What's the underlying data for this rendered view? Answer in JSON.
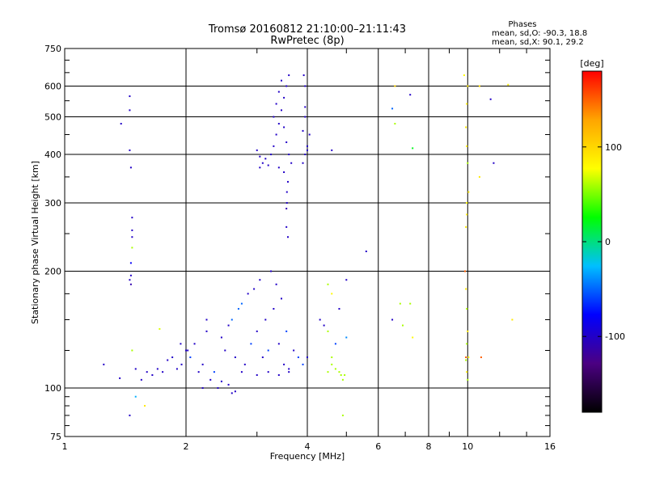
{
  "chart_data": {
    "type": "scatter",
    "title": "Tromsø 20160812 21:10:00–21:11:43",
    "subtitle": "RwPretec (8p)",
    "xlabel": "Frequency [MHz]",
    "ylabel": "Stationary phase Virtual Height [km]",
    "xscale": "log",
    "yscale": "log",
    "xlim": [
      1,
      16
    ],
    "ylim": [
      75,
      750
    ],
    "x_ticks": [
      "1",
      "2",
      "4",
      "6",
      "8",
      "10",
      "16"
    ],
    "x_tick_values": [
      1,
      2,
      4,
      6,
      8,
      10,
      16
    ],
    "y_ticks": [
      "75",
      "100",
      "200",
      "300",
      "400",
      "500",
      "600",
      "750"
    ],
    "y_tick_values": [
      75,
      100,
      200,
      300,
      400,
      500,
      600,
      750
    ],
    "grid": true,
    "legend": {
      "title": "Phases",
      "lines": [
        "mean, sd,O: -90.3, 18.8",
        "mean, sd,X:  90.1, 29.2"
      ],
      "position": "top-right"
    },
    "colorbar": {
      "label": "[deg]",
      "ticks": [
        "100",
        "0",
        "-100"
      ],
      "tick_values": [
        100,
        0,
        -100
      ],
      "range": [
        -180,
        180
      ],
      "colors": [
        "#000000",
        "#4b0082",
        "#0000ff",
        "#00bfff",
        "#00ff00",
        "#ffff00",
        "#ffa500",
        "#ff0000"
      ]
    },
    "points": [
      [
        1.38,
        480,
        -100
      ],
      [
        1.45,
        565,
        -100
      ],
      [
        1.45,
        520,
        -100
      ],
      [
        1.45,
        410,
        -100
      ],
      [
        1.46,
        370,
        -100
      ],
      [
        1.47,
        275,
        -100
      ],
      [
        1.47,
        255,
        -100
      ],
      [
        1.47,
        245,
        -100
      ],
      [
        1.47,
        230,
        60
      ],
      [
        1.46,
        210,
        -80
      ],
      [
        1.46,
        195,
        -100
      ],
      [
        1.45,
        190,
        -100
      ],
      [
        1.46,
        185,
        -110
      ],
      [
        1.47,
        125,
        60
      ],
      [
        1.45,
        85,
        -100
      ],
      [
        1.25,
        115,
        -100
      ],
      [
        1.37,
        106,
        -100
      ],
      [
        1.58,
        90,
        90
      ],
      [
        1.5,
        95,
        -30
      ],
      [
        1.6,
        110,
        -100
      ],
      [
        1.65,
        108,
        -100
      ],
      [
        1.7,
        112,
        -100
      ],
      [
        1.75,
        110,
        -100
      ],
      [
        1.8,
        118,
        -100
      ],
      [
        1.85,
        120,
        -100
      ],
      [
        1.9,
        112,
        -100
      ],
      [
        1.95,
        115,
        -100
      ],
      [
        2.0,
        125,
        -100
      ],
      [
        2.05,
        120,
        -60
      ],
      [
        2.1,
        130,
        -100
      ],
      [
        2.15,
        110,
        -100
      ],
      [
        2.2,
        115,
        -100
      ],
      [
        2.25,
        140,
        -100
      ],
      [
        2.3,
        105,
        -100
      ],
      [
        2.35,
        110,
        -60
      ],
      [
        2.4,
        100,
        -100
      ],
      [
        2.45,
        135,
        -100
      ],
      [
        2.5,
        125,
        -100
      ],
      [
        2.55,
        145,
        -100
      ],
      [
        2.6,
        150,
        -50
      ],
      [
        2.65,
        120,
        -100
      ],
      [
        2.7,
        160,
        -50
      ],
      [
        2.75,
        165,
        -50
      ],
      [
        2.8,
        115,
        -100
      ],
      [
        2.85,
        175,
        -100
      ],
      [
        2.9,
        130,
        -60
      ],
      [
        2.95,
        180,
        -100
      ],
      [
        3.0,
        140,
        -100
      ],
      [
        3.05,
        190,
        -100
      ],
      [
        3.1,
        120,
        -100
      ],
      [
        3.15,
        150,
        -100
      ],
      [
        3.2,
        125,
        -60
      ],
      [
        3.25,
        200,
        -100
      ],
      [
        3.3,
        160,
        -100
      ],
      [
        3.35,
        185,
        -100
      ],
      [
        3.4,
        130,
        -100
      ],
      [
        3.45,
        170,
        -100
      ],
      [
        3.5,
        115,
        -100
      ],
      [
        3.55,
        140,
        -60
      ],
      [
        3.6,
        110,
        -100
      ],
      [
        3.7,
        125,
        -100
      ],
      [
        3.8,
        120,
        -60
      ],
      [
        3.9,
        115,
        -60
      ],
      [
        4.0,
        120,
        -100
      ],
      [
        2.65,
        98,
        -100
      ],
      [
        2.55,
        102,
        -100
      ],
      [
        2.45,
        104,
        -100
      ],
      [
        2.75,
        110,
        -100
      ],
      [
        3.0,
        108,
        -100
      ],
      [
        3.2,
        110,
        -100
      ],
      [
        3.4,
        108,
        -100
      ],
      [
        3.6,
        112,
        -100
      ],
      [
        2.2,
        100,
        -100
      ],
      [
        2.6,
        97,
        -100
      ],
      [
        1.72,
        142,
        70
      ],
      [
        1.94,
        130,
        -100
      ],
      [
        2.02,
        125,
        -100
      ],
      [
        2.25,
        150,
        -100
      ],
      [
        3.05,
        370,
        -100
      ],
      [
        3.1,
        380,
        -100
      ],
      [
        3.15,
        390,
        -100
      ],
      [
        3.2,
        375,
        -100
      ],
      [
        3.25,
        400,
        -100
      ],
      [
        3.3,
        420,
        -100
      ],
      [
        3.35,
        450,
        -100
      ],
      [
        3.4,
        480,
        -100
      ],
      [
        3.45,
        520,
        -100
      ],
      [
        3.5,
        560,
        -100
      ],
      [
        3.55,
        600,
        -100
      ],
      [
        3.6,
        640,
        -100
      ],
      [
        3.3,
        500,
        -100
      ],
      [
        3.35,
        540,
        -100
      ],
      [
        3.4,
        580,
        -100
      ],
      [
        3.45,
        620,
        -100
      ],
      [
        3.5,
        470,
        -100
      ],
      [
        3.55,
        430,
        -100
      ],
      [
        3.6,
        400,
        -100
      ],
      [
        3.65,
        380,
        -100
      ],
      [
        3.58,
        340,
        -100
      ],
      [
        3.56,
        320,
        -100
      ],
      [
        3.56,
        300,
        -100
      ],
      [
        3.55,
        290,
        -110
      ],
      [
        3.55,
        260,
        -100
      ],
      [
        3.58,
        245,
        -100
      ],
      [
        3.9,
        380,
        -100
      ],
      [
        3.95,
        400,
        -100
      ],
      [
        4.0,
        420,
        -100
      ],
      [
        4.05,
        450,
        -100
      ],
      [
        3.9,
        460,
        -100
      ],
      [
        3.95,
        500,
        -100
      ],
      [
        3.95,
        530,
        -100
      ],
      [
        3.92,
        640,
        -100
      ],
      [
        3.95,
        600,
        -100
      ],
      [
        4.0,
        410,
        -100
      ],
      [
        4.6,
        410,
        -100
      ],
      [
        3.0,
        410,
        -100
      ],
      [
        3.05,
        395,
        -100
      ],
      [
        3.4,
        370,
        -100
      ],
      [
        3.5,
        360,
        -100
      ],
      [
        4.5,
        185,
        60
      ],
      [
        4.6,
        175,
        80
      ],
      [
        5.0,
        190,
        -100
      ],
      [
        5.6,
        225,
        -100
      ],
      [
        4.8,
        160,
        -100
      ],
      [
        4.5,
        140,
        60
      ],
      [
        4.7,
        130,
        -60
      ],
      [
        4.6,
        115,
        60
      ],
      [
        4.7,
        112,
        60
      ],
      [
        4.8,
        110,
        60
      ],
      [
        4.85,
        108,
        60
      ],
      [
        4.9,
        105,
        60
      ],
      [
        4.95,
        108,
        60
      ],
      [
        4.5,
        110,
        60
      ],
      [
        4.6,
        120,
        60
      ],
      [
        4.3,
        150,
        -100
      ],
      [
        4.4,
        145,
        -100
      ],
      [
        5.0,
        135,
        -40
      ],
      [
        4.9,
        85,
        60
      ],
      [
        6.6,
        600,
        100
      ],
      [
        6.6,
        480,
        60
      ],
      [
        6.5,
        525,
        -50
      ],
      [
        7.2,
        570,
        -100
      ],
      [
        7.3,
        415,
        20
      ],
      [
        6.5,
        150,
        -100
      ],
      [
        6.8,
        165,
        60
      ],
      [
        6.9,
        145,
        60
      ],
      [
        7.2,
        165,
        60
      ],
      [
        7.3,
        135,
        80
      ],
      [
        9.8,
        640,
        80
      ],
      [
        10.0,
        600,
        90
      ],
      [
        9.95,
        540,
        90
      ],
      [
        9.9,
        470,
        90
      ],
      [
        9.95,
        420,
        90
      ],
      [
        10.0,
        380,
        60
      ],
      [
        10.05,
        320,
        90
      ],
      [
        9.95,
        300,
        80
      ],
      [
        9.95,
        280,
        90
      ],
      [
        9.9,
        260,
        90
      ],
      [
        9.85,
        200,
        150
      ],
      [
        9.9,
        180,
        90
      ],
      [
        9.95,
        160,
        60
      ],
      [
        10.0,
        140,
        90
      ],
      [
        9.95,
        130,
        60
      ],
      [
        10.05,
        120,
        80
      ],
      [
        9.9,
        118,
        60
      ],
      [
        9.95,
        110,
        90
      ],
      [
        9.9,
        120,
        150
      ],
      [
        10.0,
        105,
        60
      ],
      [
        10.7,
        600,
        100
      ],
      [
        10.7,
        350,
        90
      ],
      [
        10.8,
        120,
        150
      ],
      [
        11.4,
        555,
        -100
      ],
      [
        11.6,
        380,
        -100
      ],
      [
        12.6,
        605,
        90
      ],
      [
        12.9,
        150,
        90
      ],
      [
        1.5,
        112,
        -100
      ],
      [
        1.55,
        105,
        -100
      ]
    ]
  }
}
